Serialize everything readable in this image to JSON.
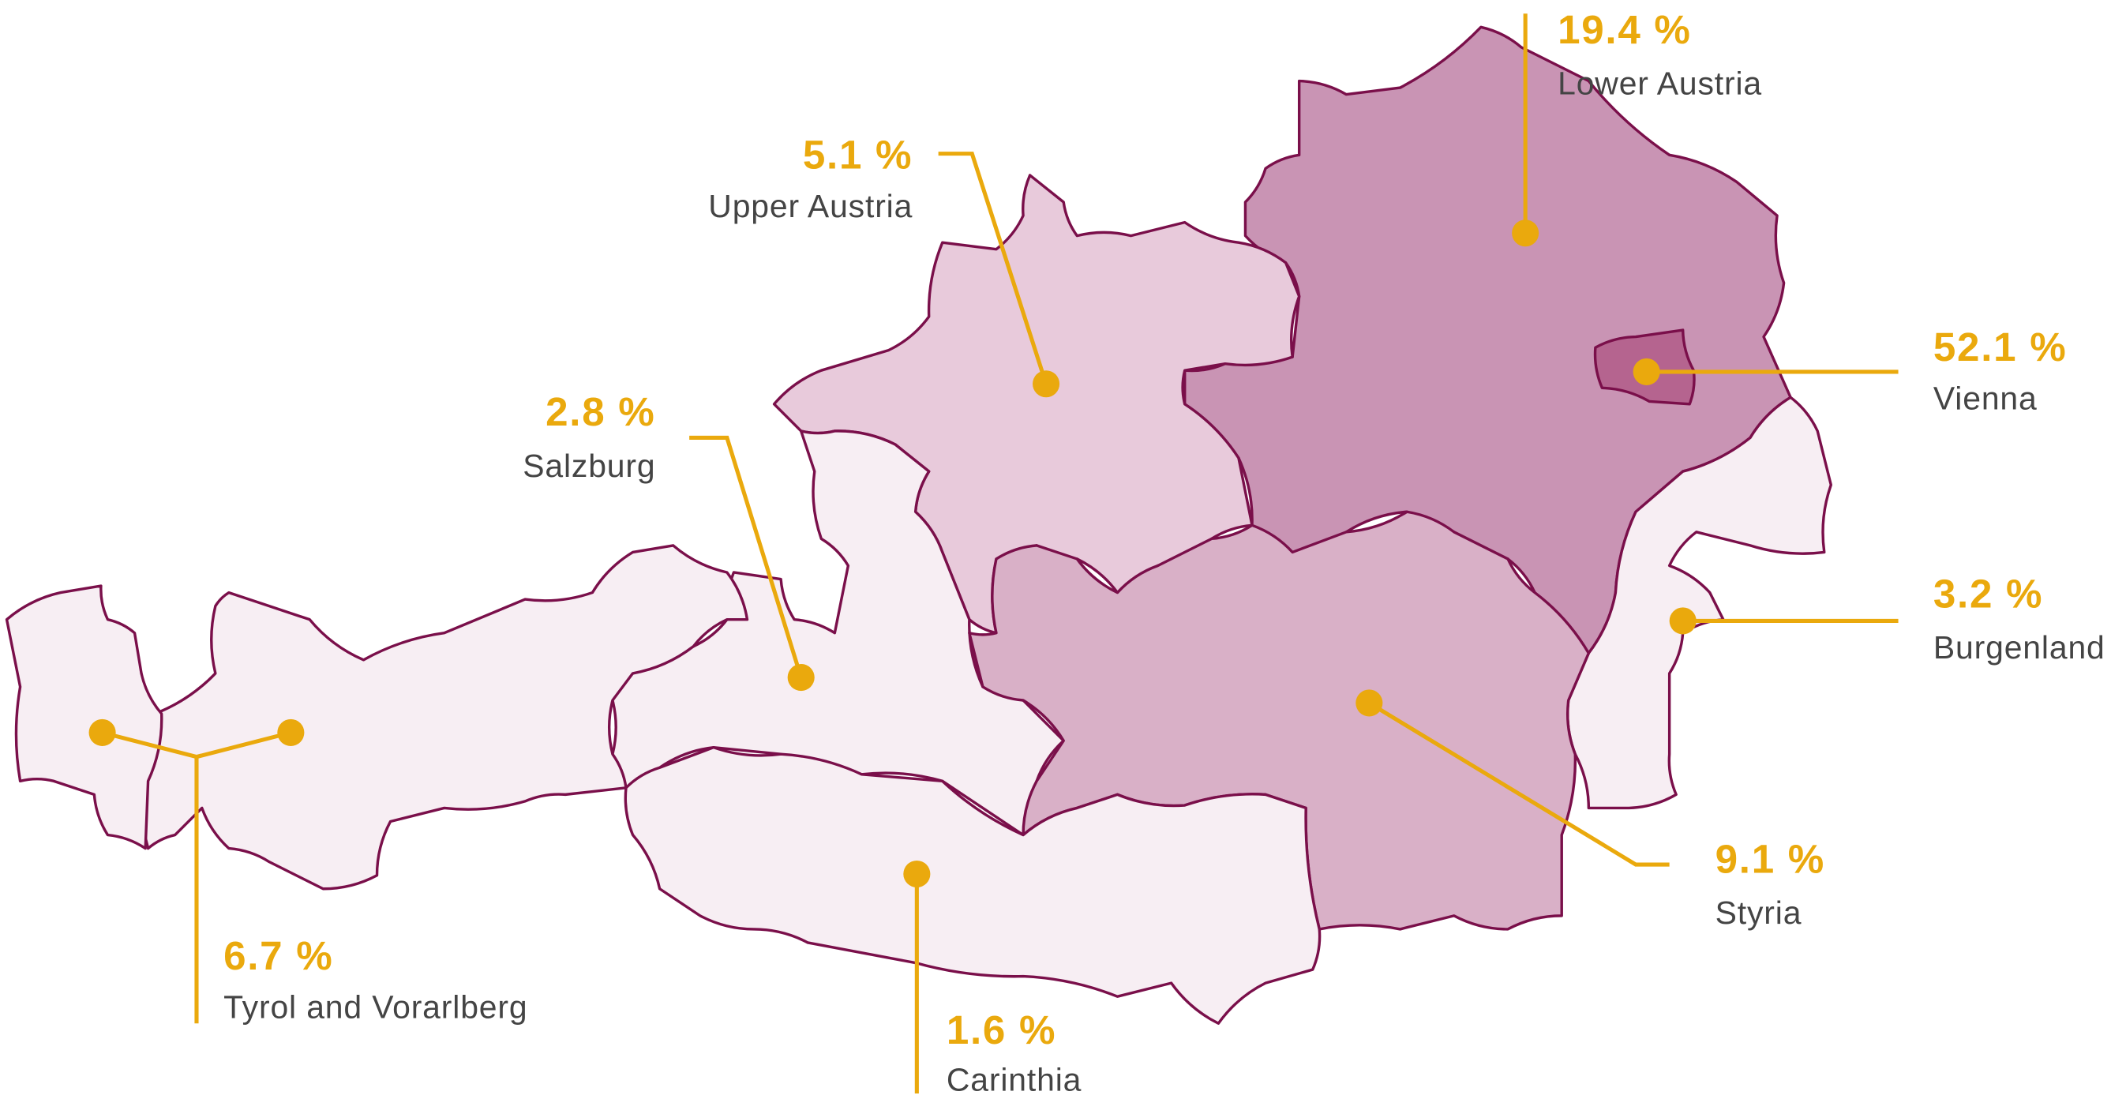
{
  "chart_data": {
    "type": "map",
    "categories": [
      "Lower Austria",
      "Upper Austria",
      "Vienna",
      "Salzburg",
      "Burgenland",
      "Tyrol and Vorarlberg",
      "Styria",
      "Carinthia"
    ],
    "values": [
      19.4,
      5.1,
      52.1,
      2.8,
      3.2,
      6.7,
      9.1,
      1.6
    ],
    "value_labels": [
      "19.4 %",
      "5.1 %",
      "52.1 %",
      "2.8 %",
      "3.2 %",
      "6.7 %",
      "9.1 %",
      "1.6 %"
    ],
    "colors": [
      "#c994b4",
      "#e8cadb",
      "#b5648f",
      "#f7eef3",
      "#f7eef3",
      "#f7eef3",
      "#d9b0c7",
      "#f7eef3"
    ],
    "border_color": "#7a0f4a",
    "marker_color": "#eaa90d"
  }
}
